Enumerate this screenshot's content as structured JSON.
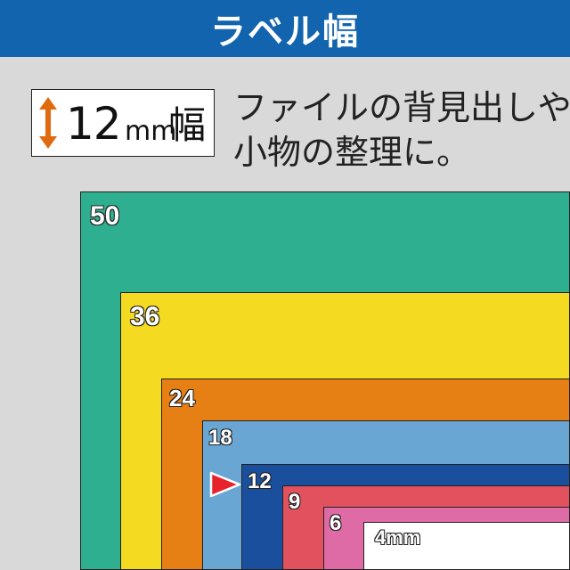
{
  "header": {
    "title": "ラベル幅"
  },
  "width_badge": {
    "value": "12",
    "unit": "mm",
    "suffix": "幅",
    "arrow_color": "#e06a0e"
  },
  "description": {
    "line1": "ファイルの背見出しや",
    "line2": "小物の整理に。"
  },
  "tapes": [
    {
      "label": "50",
      "color": "#2eaf8f"
    },
    {
      "label": "36",
      "color": "#f4db22"
    },
    {
      "label": "24",
      "color": "#e67f14"
    },
    {
      "label": "18",
      "color": "#6aa6d4"
    },
    {
      "label": "12",
      "color": "#1a4f9e",
      "highlighted": true,
      "marker_color": "#e8222a"
    },
    {
      "label": "9",
      "color": "#e2515e"
    },
    {
      "label": "6",
      "color": "#de6aa6"
    },
    {
      "label": "4mm",
      "color": "#ffffff"
    }
  ],
  "colors": {
    "header_bg": "#1164ad",
    "page_bg": "#d9d9d9"
  }
}
